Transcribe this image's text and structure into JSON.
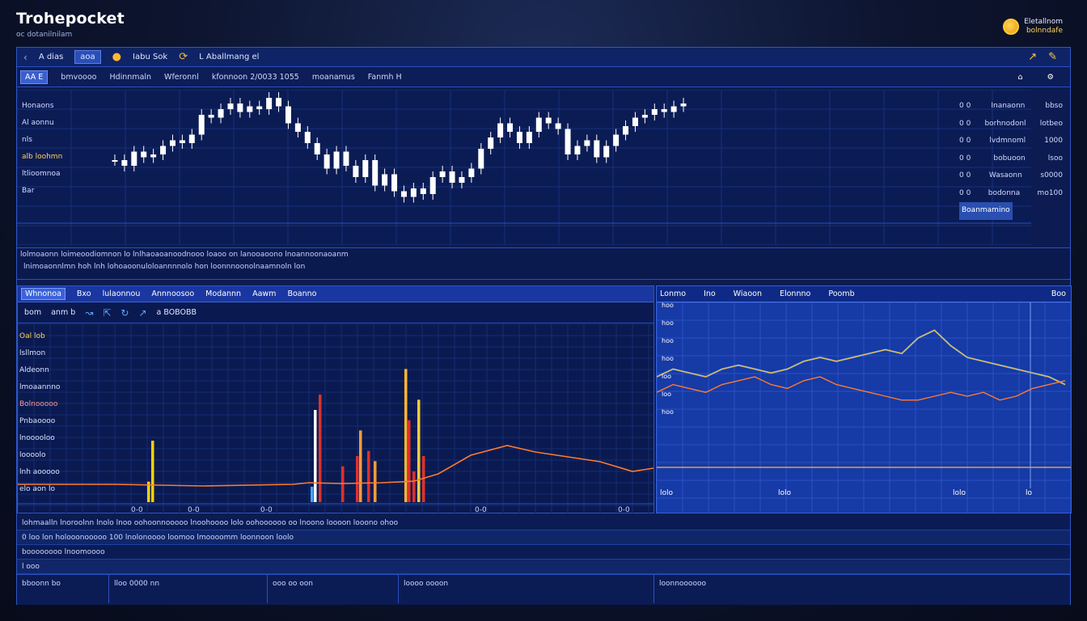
{
  "brand": {
    "name": "Trohepocket",
    "tagline": "oc dotanilnilam"
  },
  "account": {
    "line1": "Eletallnom",
    "line2": "bolnndafe"
  },
  "toolbar": {
    "items": [
      "A dias",
      "Iabu Sok",
      "L Aballmang el"
    ],
    "active_chip": "aoa"
  },
  "subbar": {
    "chip": "AA E",
    "items": [
      "bmvoooo",
      "Hdinnmaln",
      "Wferonnl",
      "kfonnoon 2/0033 1055",
      "moanamus",
      "Fanmh H"
    ]
  },
  "main_chart": {
    "left_labels": [
      "Honaons",
      "Al aonnu",
      "nls",
      "alb loohmn",
      "ltlioomnoa",
      "Bar"
    ],
    "right_scale": [
      {
        "a": "0 0",
        "b": "Inanaonn",
        "c": "bbso"
      },
      {
        "a": "0 0",
        "b": "borhnodonl",
        "c": "lotbeo"
      },
      {
        "a": "0 0",
        "b": "lvdmnoml",
        "c": "1000"
      },
      {
        "a": "0 0",
        "b": "bobuoon",
        "c": "lsoo"
      },
      {
        "a": "0 0",
        "b": "Wasaonn",
        "c": "s0000"
      },
      {
        "a": "0 0",
        "b": "bodonna",
        "c": "mo100"
      }
    ],
    "bottom_tag": "Boanmamino"
  },
  "axis_row": {
    "line1": "lolmoaonn   loimeoodiomnon   lo   lnlhaoaoanoodnooo   loaoo   on   lanooaoono   lnoannoonaoanm",
    "line2": "lnimoaonnlmn   hoh   lnh   lohoaoonuloloannnnolo   hon   loonnnoonolnaamnoln   lon"
  },
  "lower_left": {
    "header": [
      "Whnonoa",
      "Bxo",
      "lulaonnou",
      "Annnoosoo",
      "Modannn",
      "Aawm",
      "Boanno"
    ],
    "tools": [
      "bom",
      "anm b",
      "a BOBOBB"
    ],
    "side": [
      "Oal lob",
      "lsllmon",
      "Aldeonn",
      "lmoaannno",
      "Bolnooooo",
      "Pnbaoooo",
      "lnooooloo",
      "loooolo",
      "lnh aooooo",
      "elo aon lo"
    ],
    "xticks": [
      "0-0",
      "0-0",
      "0-0",
      "0-0",
      "0-0"
    ]
  },
  "lower_right": {
    "header": [
      "Lonmo",
      "Ino",
      "Wiaoon",
      "Elonnno",
      "Poomb",
      "Boo"
    ],
    "yticks": [
      "hoo",
      "hoo",
      "hoo",
      "hoo",
      "loo",
      "loo",
      "hoo"
    ],
    "xticks": [
      "lolo",
      "lolo",
      "lolo",
      "lo"
    ]
  },
  "bottom": {
    "row1": "lohmaalln   lnoroolnn   lnolo   lnoo   oohoonnooooo   lnoohoooo   lolo   oohoooooo   oo   lnoono   loooon   looono   ohoo",
    "row2": "0   loo   lon   holooonooooo   100   lnolonoooo   loomoo   lmoooomm   loonnoon   loolo",
    "row3": "boooooooo   lnoomoooo",
    "row4": "l   ooo",
    "cell_a": "bboonn bo",
    "cell_b": "lloo 0000 nn",
    "cell_c": "ooo oo oon",
    "cell_d": "loooo oooon",
    "cell_e": "loonnoooooo"
  },
  "colors": {
    "bg": "#0c1c52",
    "panel": "#163aa6",
    "accent": "#ffb733",
    "candle": "#ffffff",
    "orange": "#ff7a2e",
    "red": "#e0302a",
    "yellow": "#ffd000",
    "cyan": "#45a6ff"
  },
  "chart_data": [
    {
      "type": "candlestick",
      "values": [
        18,
        16,
        21,
        19,
        20,
        23,
        25,
        24,
        27,
        34,
        33,
        36,
        38,
        35,
        37,
        36,
        40,
        37,
        31,
        28,
        24,
        20,
        15,
        21,
        16,
        12,
        18,
        9,
        13,
        7,
        5,
        8,
        6,
        12,
        14,
        10,
        12,
        15,
        22,
        26,
        31,
        28,
        24,
        28,
        33,
        31,
        29,
        20,
        23,
        25,
        19,
        23,
        27,
        30,
        33,
        34,
        36,
        35,
        37,
        38
      ]
    },
    {
      "type": "bar",
      "values": [
        40,
        120,
        30,
        180,
        210,
        70,
        90,
        140,
        100,
        80,
        260,
        160,
        60,
        200,
        90
      ]
    },
    {
      "type": "line",
      "series": [
        {
          "values": [
            10,
            12,
            11,
            10,
            12,
            13,
            12,
            11,
            12,
            14,
            15,
            14,
            15,
            16,
            17,
            16,
            20,
            22,
            18,
            15,
            14,
            13,
            12,
            11,
            10,
            8
          ]
        },
        {
          "values": [
            6,
            8,
            7,
            6,
            8,
            9,
            10,
            8,
            7,
            9,
            10,
            8,
            7,
            6,
            5,
            4,
            4,
            5,
            6,
            5,
            6,
            4,
            5,
            7,
            8,
            9
          ]
        }
      ]
    }
  ]
}
